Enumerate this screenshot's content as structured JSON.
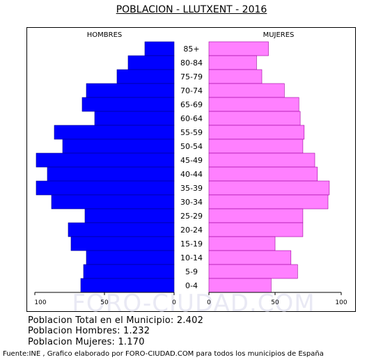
{
  "title": "POBLACION - LLUTXENT - 2016",
  "chart_data": {
    "type": "bar",
    "orientation": "horizontal",
    "layout": "population-pyramid",
    "categories": [
      "85+",
      "80-84",
      "75-79",
      "70-74",
      "65-69",
      "60-64",
      "55-59",
      "50-54",
      "45-49",
      "40-44",
      "35-39",
      "30-34",
      "25-29",
      "20-24",
      "15-19",
      "10-14",
      "5-9",
      "0-4"
    ],
    "series": [
      {
        "name": "HOMBRES",
        "color": "#0000ff",
        "values": [
          21,
          33,
          41,
          63,
          66,
          57,
          86,
          80,
          99,
          91,
          99,
          88,
          64,
          76,
          74,
          63,
          65,
          67
        ]
      },
      {
        "name": "MUJERES",
        "color": "#ff80ff",
        "values": [
          45,
          36,
          40,
          57,
          68,
          69,
          72,
          71,
          80,
          82,
          91,
          90,
          71,
          71,
          50,
          62,
          67,
          47
        ]
      }
    ],
    "x_ticks_left": [
      "100",
      "50",
      "0"
    ],
    "x_ticks_right": [
      "0",
      "50",
      "100"
    ],
    "xlim": [
      0,
      100
    ],
    "watermark": "FORO-CIUDAD.COM"
  },
  "footer": {
    "total": "Poblacion Total en el Municipio: 2.402",
    "hombres": "Poblacion Hombres: 1.232",
    "mujeres": "Poblacion Mujeres: 1.170",
    "source": "Fuente:INE , Grafico elaborado por FORO-CIUDAD.COM para todos los municipios de España"
  }
}
